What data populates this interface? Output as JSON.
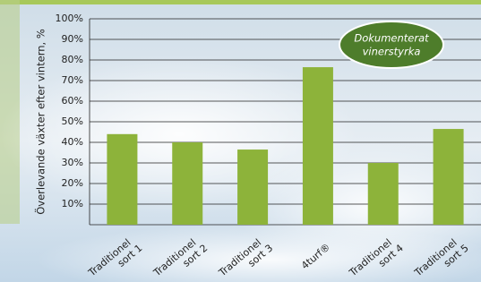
{
  "chart_data": {
    "type": "bar",
    "y_label": "Överlevande växter efter vintern, %",
    "annotation": [
      "Dokumenterat",
      "vinerstyrka"
    ],
    "categories": [
      [
        "Traditionel",
        "sort 1"
      ],
      [
        "Traditionel",
        "sort 2"
      ],
      [
        "Traditionel",
        "sort 3"
      ],
      [
        "4turf®"
      ],
      [
        "Traditionel",
        "sort 4"
      ],
      [
        "Traditionel",
        "sort 5"
      ]
    ],
    "values": [
      44,
      40,
      36.5,
      76.5,
      30,
      46.5
    ],
    "color": "#8db33a",
    "ylim": [
      0,
      100
    ],
    "yticks": [
      {
        "value": 10,
        "label": "10%"
      },
      {
        "value": 20,
        "label": "20%"
      },
      {
        "value": 30,
        "label": "30%"
      },
      {
        "value": 40,
        "label": "40%"
      },
      {
        "value": 50,
        "label": "50%"
      },
      {
        "value": 60,
        "label": "60%"
      },
      {
        "value": 70,
        "label": "70%"
      },
      {
        "value": 80,
        "label": "80%"
      },
      {
        "value": 90,
        "label": "90%"
      },
      {
        "value": 100,
        "label": "100%"
      }
    ],
    "grid": true
  }
}
